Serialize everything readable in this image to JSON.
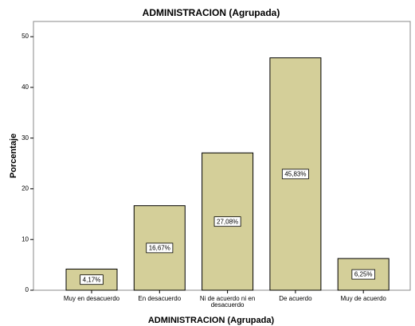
{
  "chart_data": {
    "type": "bar",
    "title": "ADMINISTRACION (Agrupada)",
    "x_label": "ADMINISTRACION (Agrupada)",
    "y_label": "Porcentaje",
    "categories": [
      "Muy en desacuerdo",
      "En desacuerdo",
      "Ni de acuerdo ni en desacuerdo",
      "De acuerdo",
      "Muy de acuerdo"
    ],
    "values": [
      4.17,
      16.67,
      27.08,
      45.83,
      6.25
    ],
    "value_labels": [
      "4,17%",
      "16,67%",
      "27,08%",
      "45,83%",
      "6,25%"
    ],
    "color": "#d4cf99",
    "ylim": [
      0,
      53
    ],
    "yticks": [
      0,
      10,
      20,
      30,
      40,
      50
    ]
  }
}
